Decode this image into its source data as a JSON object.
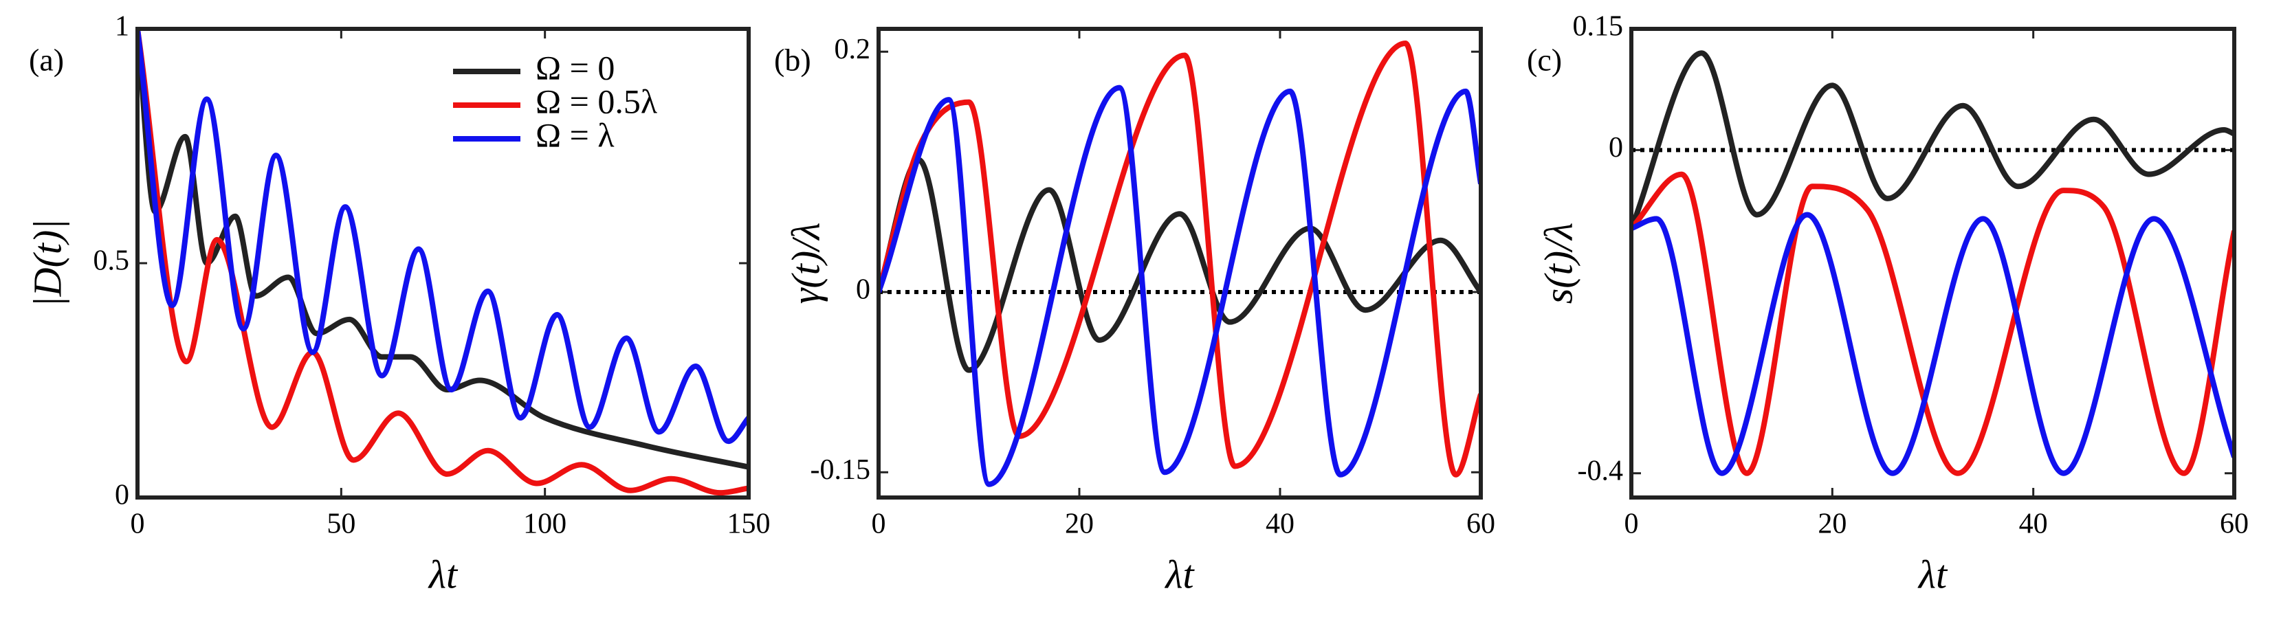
{
  "chart_data": [
    {
      "type": "line",
      "panel_label": "(a)",
      "xlabel": "λt",
      "ylabel": "|D(t)|",
      "xlim": [
        0,
        150
      ],
      "ylim": [
        0,
        1
      ],
      "xticks": [
        0,
        50,
        100,
        150
      ],
      "yticks": [
        0,
        0.5,
        1
      ],
      "legend": "upper right",
      "series": [
        {
          "name": "Ω = 0",
          "color": "#222222",
          "x": [
            0,
            4.3,
            11.7,
            17,
            24,
            29,
            37,
            44,
            52,
            60,
            67,
            76,
            84,
            100,
            125,
            150
          ],
          "values": [
            1,
            0.61,
            0.77,
            0.5,
            0.6,
            0.43,
            0.47,
            0.35,
            0.38,
            0.3,
            0.3,
            0.23,
            0.25,
            0.17,
            0.11,
            0.065
          ]
        },
        {
          "name": "Ω = 0.5λ",
          "color": "#ee1111",
          "x": [
            0,
            12,
            19.5,
            33,
            43,
            53,
            64,
            76,
            86,
            98,
            109,
            121,
            131,
            143,
            150
          ],
          "values": [
            1,
            0.29,
            0.55,
            0.15,
            0.31,
            0.08,
            0.18,
            0.05,
            0.1,
            0.03,
            0.07,
            0.015,
            0.04,
            0.01,
            0.02
          ]
        },
        {
          "name": "Ω = λ",
          "color": "#1111ee",
          "x": [
            0,
            8.5,
            17,
            26,
            34,
            43,
            51,
            60,
            69,
            77,
            86,
            94,
            103,
            111,
            120,
            128,
            137,
            145,
            150
          ],
          "values": [
            1,
            0.41,
            0.85,
            0.36,
            0.73,
            0.31,
            0.62,
            0.26,
            0.53,
            0.23,
            0.44,
            0.17,
            0.39,
            0.15,
            0.34,
            0.14,
            0.28,
            0.12,
            0.17
          ]
        }
      ]
    },
    {
      "type": "line",
      "panel_label": "(b)",
      "xlabel": "λt",
      "ylabel": "γ(t)/λ",
      "xlim": [
        0,
        60
      ],
      "ylim": [
        -0.171,
        0.219
      ],
      "xticks": [
        0,
        20,
        40,
        60
      ],
      "yticks": [
        -0.15,
        0,
        0.2
      ],
      "hline": 0,
      "series": [
        {
          "name": "Ω = 0",
          "color": "#222222",
          "x": [
            0,
            4,
            9,
            17,
            22,
            30,
            35,
            43,
            48.5,
            56,
            60
          ],
          "values": [
            0,
            0.11,
            -0.065,
            0.085,
            -0.04,
            0.065,
            -0.025,
            0.053,
            -0.015,
            0.043,
            0
          ]
        },
        {
          "name": "Ω = 0.5λ",
          "color": "#ee1111",
          "x": [
            0,
            4,
            9,
            14,
            30.5,
            35.5,
            52.5,
            57.5,
            60
          ],
          "values": [
            0,
            0.12,
            0.158,
            -0.12,
            0.197,
            -0.145,
            0.207,
            -0.152,
            -0.085
          ]
        },
        {
          "name": "Ω = λ",
          "color": "#1111ee",
          "x": [
            0,
            7,
            11,
            24,
            28.5,
            41,
            46,
            58.5,
            60
          ],
          "values": [
            0,
            0.16,
            -0.16,
            0.17,
            -0.15,
            0.167,
            -0.152,
            0.167,
            0.09
          ]
        }
      ]
    },
    {
      "type": "line",
      "panel_label": "(c)",
      "xlabel": "λt",
      "ylabel": "s(t)/λ",
      "xlim": [
        0,
        60
      ],
      "ylim": [
        -0.43,
        0.15
      ],
      "xticks": [
        0,
        20,
        40,
        60
      ],
      "yticks": [
        -0.4,
        0,
        0.15
      ],
      "hline": 0,
      "series": [
        {
          "name": "Ω = 0",
          "color": "#222222",
          "x": [
            0,
            7,
            12.5,
            20,
            25.5,
            33,
            38.5,
            46,
            51.5,
            59,
            60
          ],
          "values": [
            -0.097,
            0.12,
            -0.08,
            0.08,
            -0.06,
            0.055,
            -0.045,
            0.038,
            -0.03,
            0.025,
            0.02
          ]
        },
        {
          "name": "Ω = 0.5λ",
          "color": "#ee1111",
          "x": [
            0,
            5,
            11.5,
            18,
            23.5,
            32.5,
            43,
            47,
            55,
            60
          ],
          "values": [
            -0.097,
            -0.03,
            -0.4,
            -0.045,
            -0.074,
            -0.4,
            -0.05,
            -0.07,
            -0.4,
            -0.1
          ]
        },
        {
          "name": "Ω = λ",
          "color": "#1111ee",
          "x": [
            0,
            2.5,
            9,
            17.5,
            26,
            35,
            43,
            52,
            60
          ],
          "values": [
            -0.097,
            -0.085,
            -0.4,
            -0.08,
            -0.4,
            -0.085,
            -0.4,
            -0.085,
            -0.38
          ]
        }
      ]
    }
  ]
}
